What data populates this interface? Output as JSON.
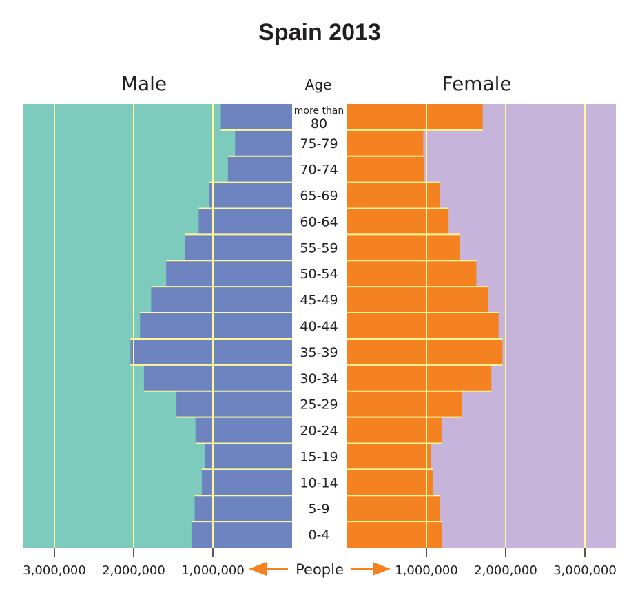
{
  "chart_data": {
    "type": "bar",
    "subtype": "population-pyramid",
    "title": "Spain 2013",
    "left_label": "Male",
    "right_label": "Female",
    "center_header": "Age",
    "xlabel": "People",
    "categories": [
      "more than 80",
      "75-79",
      "70-74",
      "65-69",
      "60-64",
      "55-59",
      "50-54",
      "45-49",
      "40-44",
      "35-39",
      "30-34",
      "25-29",
      "20-24",
      "15-19",
      "10-14",
      "5-9",
      "0-4"
    ],
    "category_lines": [
      [
        "more than",
        "80"
      ],
      [
        "75-79"
      ],
      [
        "70-74"
      ],
      [
        "65-69"
      ],
      [
        "60-64"
      ],
      [
        "55-59"
      ],
      [
        "50-54"
      ],
      [
        "45-49"
      ],
      [
        "40-44"
      ],
      [
        "35-39"
      ],
      [
        "30-34"
      ],
      [
        "25-29"
      ],
      [
        "20-24"
      ],
      [
        "15-19"
      ],
      [
        "10-14"
      ],
      [
        "5-9"
      ],
      [
        "0-4"
      ]
    ],
    "series": [
      {
        "name": "Male",
        "color": "#6e84c0",
        "background": "#7dcbbd",
        "values": [
          900000,
          720000,
          810000,
          1050000,
          1180000,
          1350000,
          1590000,
          1780000,
          1920000,
          2040000,
          1870000,
          1460000,
          1220000,
          1100000,
          1140000,
          1230000,
          1270000
        ]
      },
      {
        "name": "Female",
        "color": "#f58220",
        "background": "#c6b4da",
        "values": [
          1710000,
          960000,
          970000,
          1170000,
          1280000,
          1420000,
          1630000,
          1780000,
          1910000,
          1960000,
          1820000,
          1450000,
          1190000,
          1060000,
          1080000,
          1170000,
          1200000
        ]
      }
    ],
    "xlim": [
      0,
      3400000
    ],
    "xticks": [
      1000000,
      2000000,
      3000000
    ],
    "xtick_labels": [
      "1,000,000",
      "2,000,000",
      "3,000,000"
    ],
    "gridlines": true,
    "gridline_color": "#fff799",
    "arrow_color": "#f58220"
  }
}
